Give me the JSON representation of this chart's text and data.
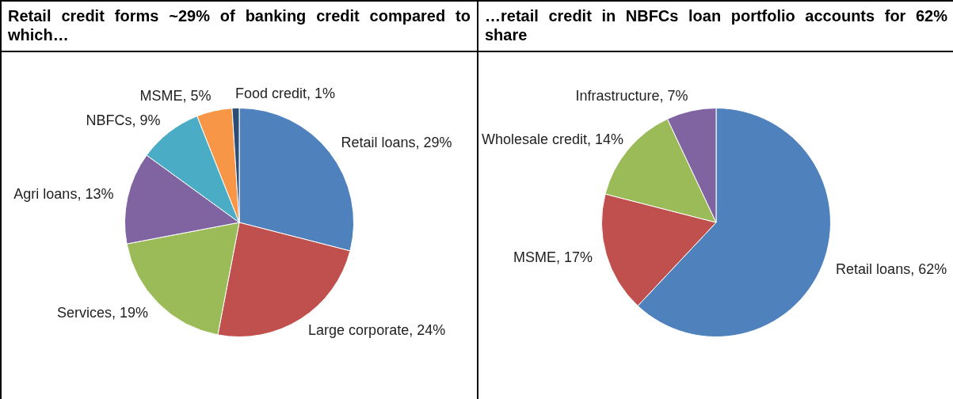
{
  "chart_data": [
    {
      "type": "pie",
      "title": "Retail credit forms ~29% of banking credit compared to which…",
      "categories": [
        "Retail loans",
        "Large corporate",
        "Services",
        "Agri loans",
        "NBFCs",
        "MSME",
        "Food credit"
      ],
      "values": [
        29,
        24,
        19,
        13,
        9,
        5,
        1
      ],
      "value_labels": [
        "29%",
        "24%",
        "19%",
        "13%",
        "9%",
        "5%",
        "1%"
      ],
      "colors": [
        "#4f81bd",
        "#c0504d",
        "#9bbb59",
        "#8064a2",
        "#4bacc6",
        "#f79646",
        "#2c4d75"
      ],
      "legend": false
    },
    {
      "type": "pie",
      "title": "…retail credit in NBFCs loan portfolio accounts for 62% share",
      "categories": [
        "Retail loans",
        "MSME",
        "Wholesale credit",
        "Infrastructure"
      ],
      "values": [
        62,
        17,
        14,
        7
      ],
      "value_labels": [
        "62%",
        "17%",
        "14%",
        "7%"
      ],
      "colors": [
        "#4f81bd",
        "#c0504d",
        "#9bbb59",
        "#8064a2"
      ],
      "legend": false
    }
  ]
}
